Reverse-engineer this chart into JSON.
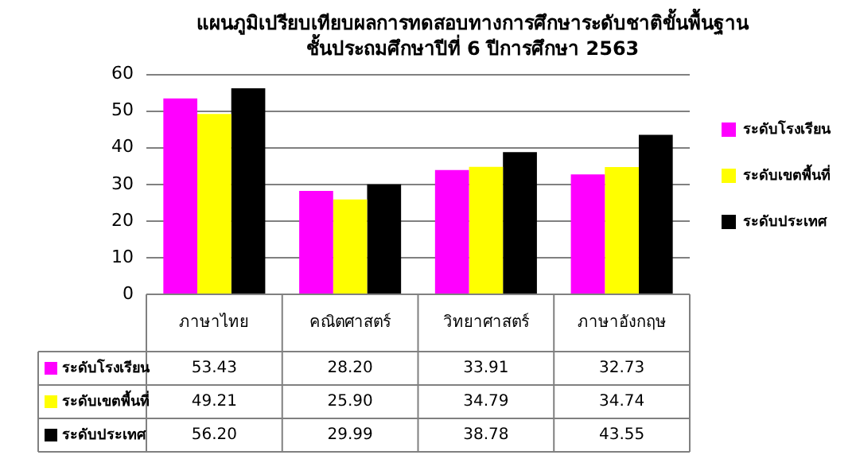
{
  "chart_data": {
    "type": "bar",
    "title": "แผนภูมิเปรียบเทียบผลการทดสอบทางการศึกษาระดับชาติขั้นพื้นฐาน",
    "subtitle": "ชั้นประถมศึกษาปีที่ 6 ปีการศึกษา 2563",
    "categories": [
      "ภาษาไทย",
      "คณิตศาสตร์",
      "วิทยาศาสตร์",
      "ภาษาอังกฤษ"
    ],
    "series": [
      {
        "name": "ระดับโรงเรียน",
        "color": "#ff00ff",
        "values": [
          53.43,
          28.2,
          33.91,
          32.73
        ],
        "value_labels": [
          "53.43",
          "28.20",
          "33.91",
          "32.73"
        ]
      },
      {
        "name": "ระดับเขตพื้นที่",
        "color": "#ffff00",
        "values": [
          49.21,
          25.9,
          34.79,
          34.74
        ],
        "value_labels": [
          "49.21",
          "25.90",
          "34.79",
          "34.74"
        ]
      },
      {
        "name": "ระดับประเทศ",
        "color": "#000000",
        "values": [
          56.2,
          29.99,
          38.78,
          43.55
        ],
        "value_labels": [
          "56.20",
          "29.99",
          "38.78",
          "43.55"
        ]
      }
    ],
    "ylim": [
      0,
      60
    ],
    "yticks": [
      0,
      10,
      20,
      30,
      40,
      50,
      60
    ],
    "grid": "y",
    "legend": "right"
  }
}
